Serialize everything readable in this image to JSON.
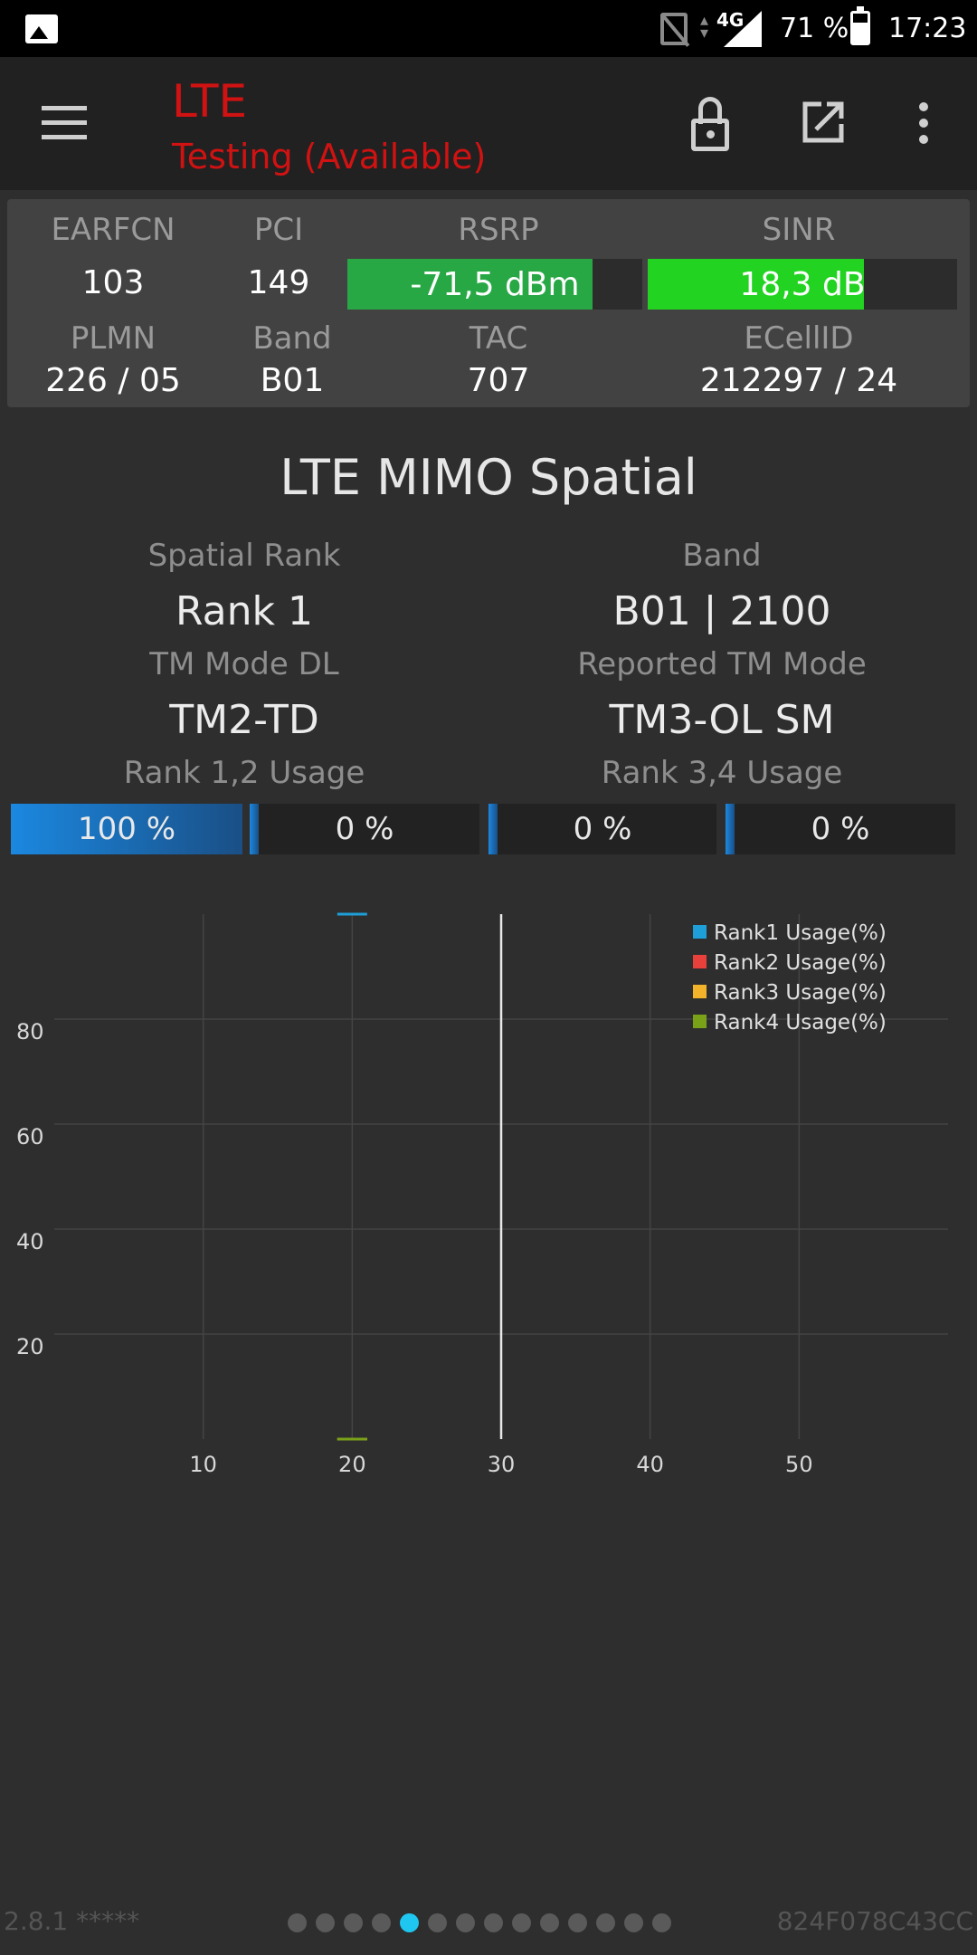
{
  "status_bar": {
    "network": "4G",
    "battery": "71 %",
    "time": "17:23"
  },
  "toolbar": {
    "title": "LTE",
    "subtitle": "Testing (Available)"
  },
  "cell_info": {
    "labels": {
      "earfcn": "EARFCN",
      "pci": "PCI",
      "rsrp": "RSRP",
      "sinr": "SINR",
      "plmn": "PLMN",
      "band": "Band",
      "tac": "TAC",
      "ecellid": "ECellID"
    },
    "values": {
      "earfcn": "103",
      "pci": "149",
      "rsrp": "-71,5 dBm",
      "sinr": "18,3 dB",
      "plmn": "226 / 05",
      "band": "B01",
      "tac": "707",
      "ecellid": "212297 / 24"
    },
    "rsrp_level": 0.83,
    "sinr_level": 0.7,
    "colors": {
      "rsrp": "#28a745",
      "sinr": "#22d322"
    }
  },
  "mimo": {
    "title": "LTE MIMO Spatial",
    "spatial_rank_label": "Spatial Rank",
    "spatial_rank": "Rank 1",
    "band_label": "Band",
    "band": "B01 | 2100",
    "tm_mode_dl_label": "TM Mode DL",
    "tm_mode_dl": "TM2-TD",
    "reported_tm_label": "Reported TM Mode",
    "reported_tm": "TM3-OL SM",
    "rank12_label": "Rank 1,2 Usage",
    "rank34_label": "Rank 3,4 Usage",
    "rank_usage": [
      {
        "text": "100 %",
        "value": 100
      },
      {
        "text": "0 %",
        "value": 0
      },
      {
        "text": "0 %",
        "value": 0
      },
      {
        "text": "0 %",
        "value": 0
      }
    ]
  },
  "chart_data": {
    "type": "line",
    "xlim": [
      0,
      60
    ],
    "ylim": [
      0,
      100
    ],
    "x_ticks": [
      "10",
      "20",
      "30",
      "40",
      "50"
    ],
    "y_ticks": [
      "20",
      "40",
      "60",
      "80"
    ],
    "grid": true,
    "cursor_x": 30,
    "legend_position": "top-right",
    "series": [
      {
        "name": "Rank1 Usage(%)",
        "color": "#1e9fd8",
        "x": [
          19,
          20,
          21
        ],
        "y": [
          100,
          100,
          100
        ]
      },
      {
        "name": "Rank2 Usage(%)",
        "color": "#e8413c",
        "x": [
          19,
          20,
          21
        ],
        "y": [
          0,
          0,
          0
        ]
      },
      {
        "name": "Rank3 Usage(%)",
        "color": "#f2b32a",
        "x": [
          19,
          20,
          21
        ],
        "y": [
          0,
          0,
          0
        ]
      },
      {
        "name": "Rank4 Usage(%)",
        "color": "#7aa218",
        "x": [
          19,
          20,
          21
        ],
        "y": [
          0,
          0,
          0
        ]
      }
    ]
  },
  "footer": {
    "version": "2.8.1 *****",
    "device_id": "824F078C43CC",
    "page_count": 14,
    "active_page": 4
  }
}
